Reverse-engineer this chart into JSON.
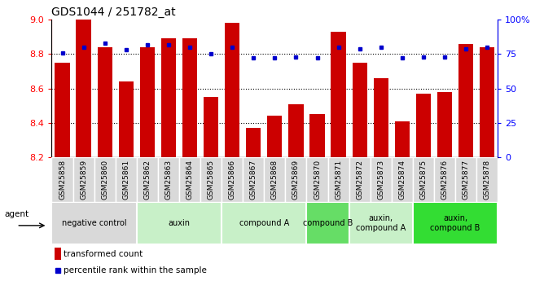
{
  "title": "GDS1044 / 251782_at",
  "samples": [
    "GSM25858",
    "GSM25859",
    "GSM25860",
    "GSM25861",
    "GSM25862",
    "GSM25863",
    "GSM25864",
    "GSM25865",
    "GSM25866",
    "GSM25867",
    "GSM25868",
    "GSM25869",
    "GSM25870",
    "GSM25871",
    "GSM25872",
    "GSM25873",
    "GSM25874",
    "GSM25875",
    "GSM25876",
    "GSM25877",
    "GSM25878"
  ],
  "bar_values": [
    8.75,
    9.0,
    8.84,
    8.64,
    8.84,
    8.89,
    8.89,
    8.55,
    8.98,
    8.37,
    8.44,
    8.51,
    8.45,
    8.93,
    8.75,
    8.66,
    8.41,
    8.57,
    8.58,
    8.86,
    8.84
  ],
  "dot_values": [
    76,
    80,
    83,
    78,
    82,
    82,
    80,
    75,
    80,
    72,
    72,
    73,
    72,
    80,
    79,
    80,
    72,
    73,
    73,
    79,
    80
  ],
  "bar_color": "#cc0000",
  "dot_color": "#0000cc",
  "ylim_left": [
    8.2,
    9.0
  ],
  "ylim_right": [
    0,
    100
  ],
  "yticks_left": [
    8.2,
    8.4,
    8.6,
    8.8,
    9.0
  ],
  "yticks_right": [
    0,
    25,
    50,
    75,
    100
  ],
  "ytick_labels_right": [
    "0",
    "25",
    "50",
    "75",
    "100%"
  ],
  "group_defs": [
    {
      "label": "negative control",
      "indices": [
        0,
        1,
        2,
        3
      ],
      "color": "#d9d9d9"
    },
    {
      "label": "auxin",
      "indices": [
        4,
        5,
        6,
        7
      ],
      "color": "#c8f0c8"
    },
    {
      "label": "compound A",
      "indices": [
        8,
        9,
        10,
        11
      ],
      "color": "#c8f0c8"
    },
    {
      "label": "compound B",
      "indices": [
        12,
        13
      ],
      "color": "#66dd66"
    },
    {
      "label": "auxin,\ncompound A",
      "indices": [
        14,
        15,
        16
      ],
      "color": "#c8f0c8"
    },
    {
      "label": "auxin,\ncompound B",
      "indices": [
        17,
        18,
        19,
        20
      ],
      "color": "#33dd33"
    }
  ],
  "agent_label": "agent",
  "legend_bar_label": "transformed count",
  "legend_dot_label": "percentile rank within the sample",
  "background_color": "#ffffff",
  "sample_cell_color": "#d9d9d9"
}
